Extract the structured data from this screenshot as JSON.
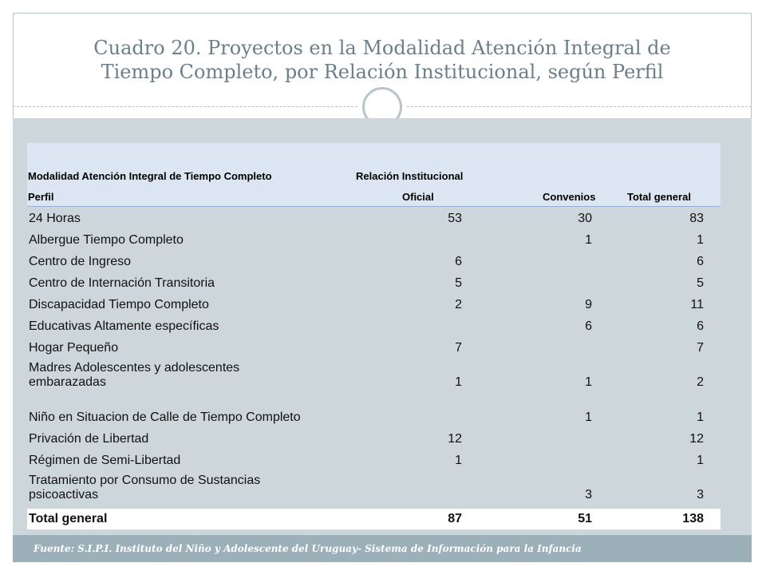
{
  "title": "Cuadro 20. Proyectos en la Modalidad Atención Integral de Tiempo Completo, por Relación Institucional, según Perfil",
  "table": {
    "header_row1": {
      "modalidad": "Modalidad Atención Integral de Tiempo Completo",
      "relacion": "Relación Institucional"
    },
    "header_row2": {
      "perfil": "Perfil",
      "oficial": "Oficial",
      "convenios": "Convenios",
      "total": "Total general"
    },
    "rows": [
      {
        "perfil": "24 Horas",
        "oficial": "53",
        "convenios": "30",
        "total": "83"
      },
      {
        "perfil": "Albergue Tiempo Completo",
        "oficial": "",
        "convenios": "1",
        "total": "1"
      },
      {
        "perfil": "Centro de Ingreso",
        "oficial": "6",
        "convenios": "",
        "total": "6"
      },
      {
        "perfil": "Centro de Internación Transitoria",
        "oficial": "5",
        "convenios": "",
        "total": "5"
      },
      {
        "perfil": "Discapacidad Tiempo Completo",
        "oficial": "2",
        "convenios": "9",
        "total": "11"
      },
      {
        "perfil": "Educativas Altamente específicas",
        "oficial": "",
        "convenios": "6",
        "total": "6"
      },
      {
        "perfil": "Hogar Pequeño",
        "oficial": "7",
        "convenios": "",
        "total": "7"
      },
      {
        "perfil": "Madres Adolescentes y adolescentes embarazadas",
        "oficial": "1",
        "convenios": "1",
        "total": "2"
      },
      {
        "perfil": "Niño en Situacion de Calle de Tiempo Completo",
        "oficial": "",
        "convenios": "1",
        "total": "1"
      },
      {
        "perfil": "Privación de Libertad",
        "oficial": "12",
        "convenios": "",
        "total": "12"
      },
      {
        "perfil": "Régimen de Semi-Libertad",
        "oficial": "1",
        "convenios": "",
        "total": "1"
      },
      {
        "perfil": "Tratamiento por Consumo de Sustancias psicoactivas",
        "oficial": "",
        "convenios": "3",
        "total": "3"
      }
    ],
    "total_row": {
      "perfil": "Total general",
      "oficial": "87",
      "convenios": "51",
      "total": "138"
    }
  },
  "footer": "Fuente: S.I.P.I. Instituto del Niño y Adolescente del Uruguay- Sistema de Información para la Infancia",
  "colors": {
    "title": "#6b7f8a",
    "panel": "#cdd6db",
    "header_bg": "#dce6f2",
    "footer_bg": "#9bb0b9"
  }
}
